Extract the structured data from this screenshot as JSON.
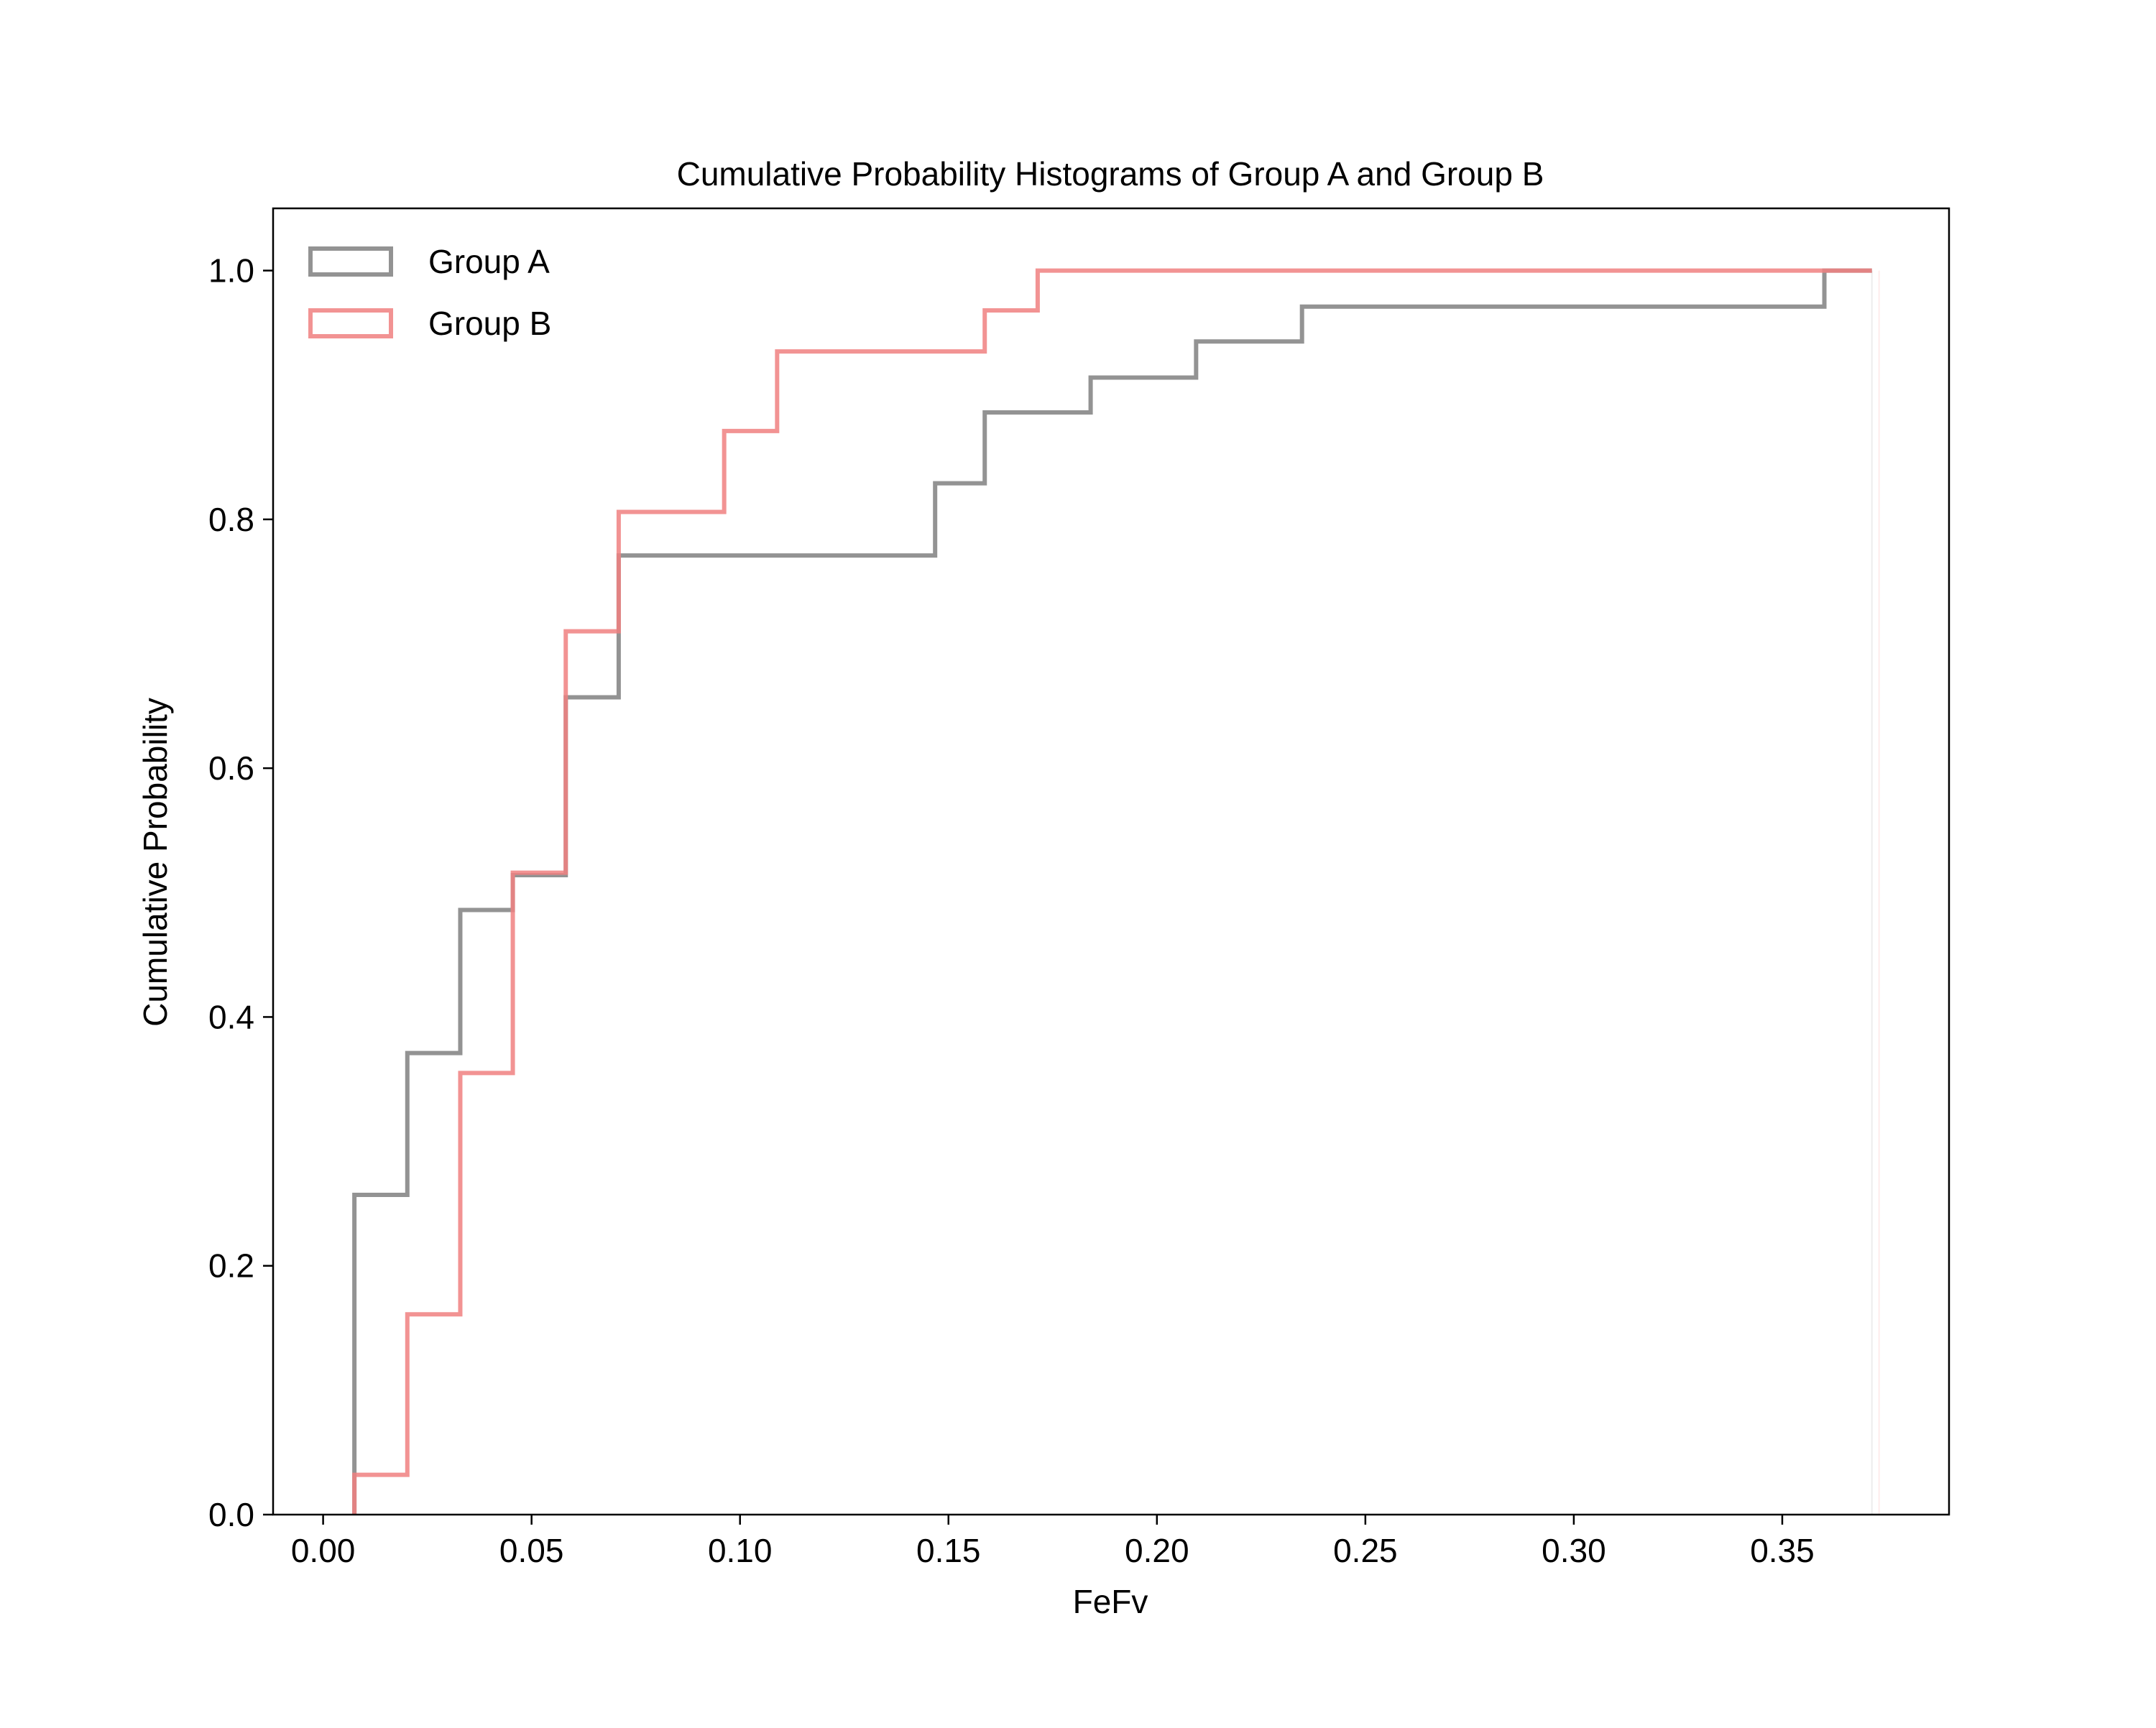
{
  "chart_data": {
    "type": "line",
    "drawstyle": "steps-post",
    "title": "Cumulative Probability Histograms of Group A and Group B",
    "xlabel": "FeFv",
    "ylabel": "Cumulative Probability",
    "xlim": [
      -0.012,
      0.39
    ],
    "ylim": [
      0.0,
      1.05
    ],
    "xticks": [
      0.0,
      0.05,
      0.1,
      0.15,
      0.2,
      0.25,
      0.3,
      0.35
    ],
    "xtick_labels": [
      "0.00",
      "0.05",
      "0.10",
      "0.15",
      "0.20",
      "0.25",
      "0.30",
      "0.35"
    ],
    "yticks": [
      0.0,
      0.2,
      0.4,
      0.6,
      0.8,
      1.0
    ],
    "ytick_labels": [
      "0.0",
      "0.2",
      "0.4",
      "0.6",
      "0.8",
      "1.0"
    ],
    "grid": false,
    "legend": {
      "position": "top-left"
    },
    "series": [
      {
        "name": "Group A",
        "color": "#808080",
        "edges": [
          0.0075,
          0.0202,
          0.0329,
          0.0455,
          0.0582,
          0.0709,
          0.1468,
          0.1587,
          0.1841,
          0.2094,
          0.2348,
          0.3601,
          0.3715
        ],
        "values": [
          0.257,
          0.371,
          0.486,
          0.514,
          0.657,
          0.771,
          0.829,
          0.886,
          0.914,
          0.943,
          0.971,
          1.0
        ]
      },
      {
        "name": "Group B",
        "color": "#f08080",
        "edges": [
          0.0075,
          0.0202,
          0.0329,
          0.0455,
          0.0582,
          0.0709,
          0.0962,
          0.1089,
          0.1587,
          0.1714,
          0.3601,
          0.3715
        ],
        "values": [
          0.032,
          0.161,
          0.355,
          0.516,
          0.71,
          0.806,
          0.871,
          0.935,
          0.968,
          1.0,
          1.0
        ]
      }
    ]
  }
}
